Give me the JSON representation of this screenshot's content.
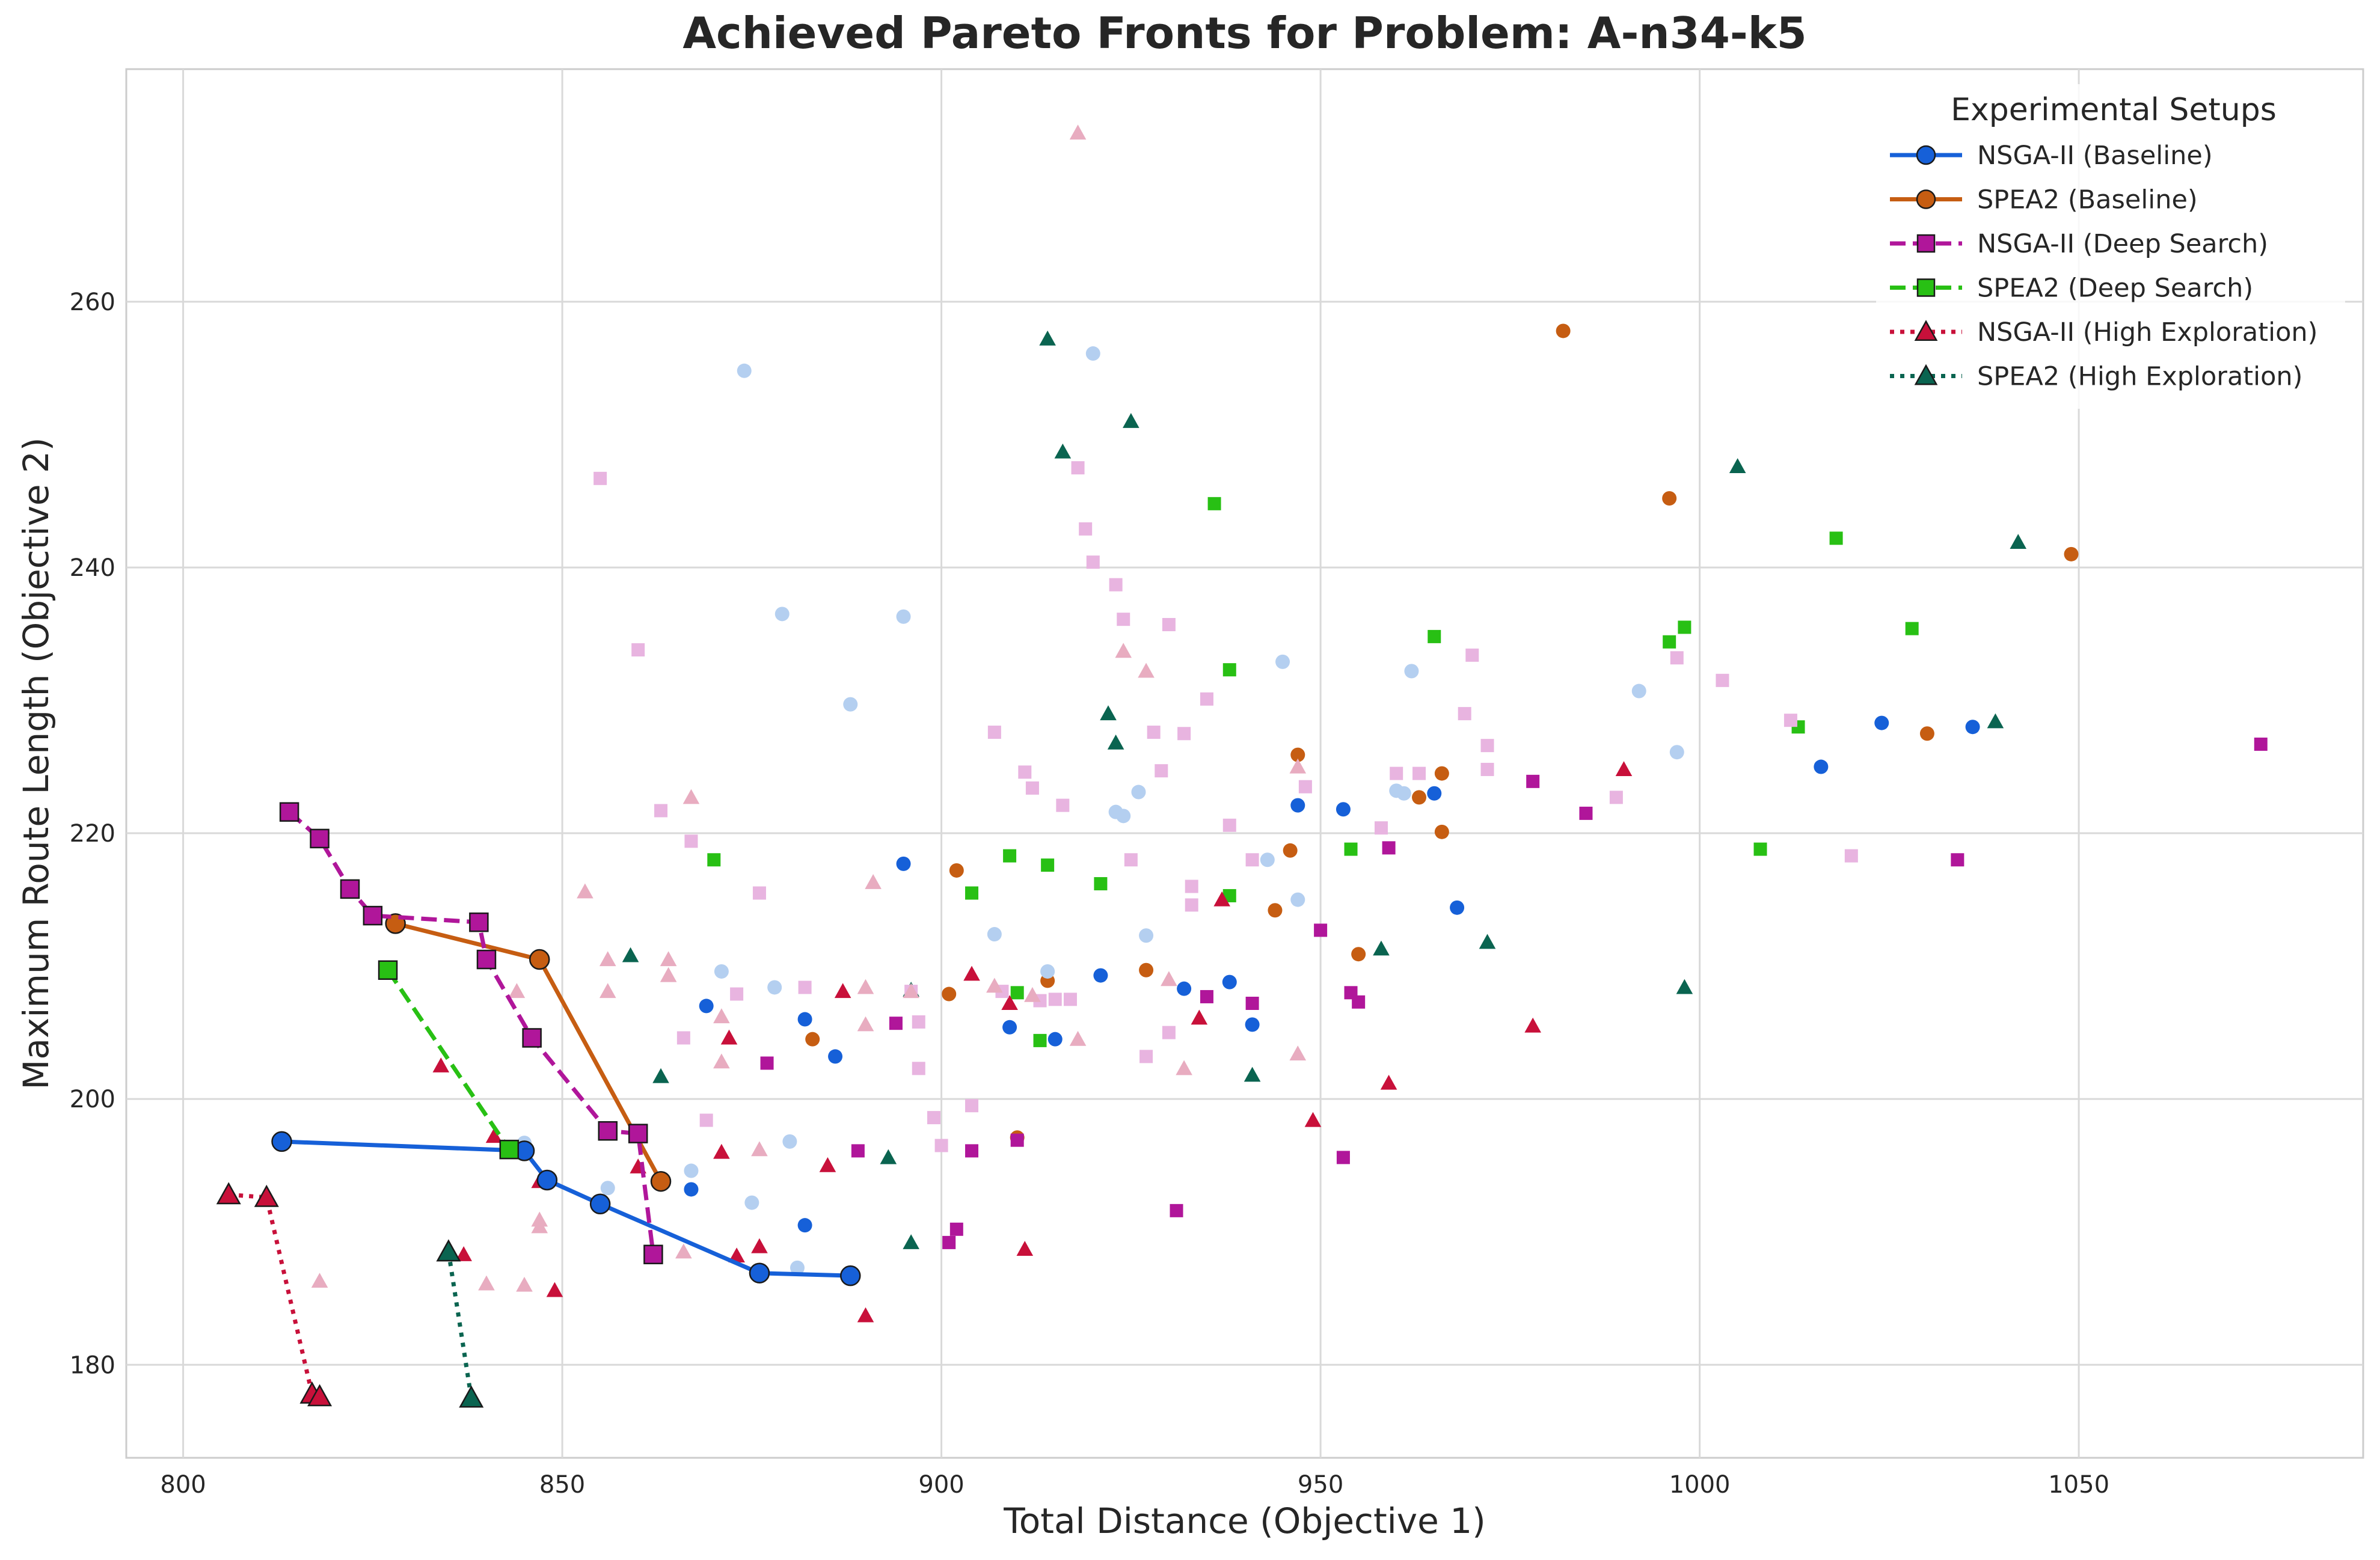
{
  "chart_data": {
    "type": "scatter",
    "title": "Achieved Pareto Fronts for Problem: A-n34-k5",
    "xlabel": "Total Distance (Objective 1)",
    "ylabel": "Maximum Route Length (Objective 2)",
    "xlim": [
      792.5,
      1087.5
    ],
    "ylim": [
      173,
      277.5
    ],
    "xticks": [
      800,
      850,
      900,
      950,
      1000,
      1050
    ],
    "yticks": [
      180,
      200,
      220,
      240,
      260
    ],
    "grid": true,
    "legend": {
      "title": "Experimental Setups",
      "placement": "top-right"
    },
    "series": [
      {
        "name": "NSGA-II (Baseline)",
        "color": "#1660d8",
        "marker": "circle",
        "line": "solid",
        "front": [
          [
            813,
            196.8
          ],
          [
            845,
            196.1
          ],
          [
            848,
            193.9
          ],
          [
            855,
            192.1
          ],
          [
            876,
            186.9
          ],
          [
            888,
            186.7
          ]
        ],
        "points": [
          [
            867,
            193.2
          ],
          [
            869,
            207
          ],
          [
            882,
            206
          ],
          [
            882,
            190.5
          ],
          [
            886,
            203.2
          ],
          [
            895,
            217.7
          ],
          [
            909,
            205.4
          ],
          [
            915,
            204.5
          ],
          [
            921,
            209.3
          ],
          [
            932,
            208.3
          ],
          [
            938,
            208.8
          ],
          [
            941,
            205.6
          ],
          [
            947,
            222.1
          ],
          [
            953,
            221.8
          ],
          [
            965,
            223
          ],
          [
            968,
            214.4
          ],
          [
            1016,
            225
          ],
          [
            1024,
            228.3
          ],
          [
            1036,
            228
          ]
        ]
      },
      {
        "name": "SPEA2 (Baseline)",
        "color": "#c65d12",
        "marker": "circle",
        "line": "solid",
        "front": [
          [
            828,
            213.2
          ],
          [
            847,
            210.5
          ],
          [
            863,
            193.8
          ]
        ],
        "points": [
          [
            883,
            204.5
          ],
          [
            901,
            207.9
          ],
          [
            902,
            217.2
          ],
          [
            910,
            197.1
          ],
          [
            914,
            208.9
          ],
          [
            927,
            209.7
          ],
          [
            944,
            214.2
          ],
          [
            946,
            218.7
          ],
          [
            947,
            225.9
          ],
          [
            955,
            210.9
          ],
          [
            963,
            222.7
          ],
          [
            966,
            224.5
          ],
          [
            966,
            220.1
          ],
          [
            982,
            257.8
          ],
          [
            996,
            245.2
          ],
          [
            1030,
            227.5
          ],
          [
            1049,
            241
          ]
        ]
      },
      {
        "name": "NSGA-II (Deep Search)",
        "color": "#b0169a",
        "marker": "square",
        "line": "dashed",
        "front": [
          [
            814,
            221.6
          ],
          [
            818,
            219.6
          ],
          [
            822,
            215.8
          ],
          [
            825,
            213.8
          ],
          [
            839,
            213.3
          ],
          [
            840,
            210.5
          ],
          [
            846,
            204.6
          ],
          [
            856,
            197.6
          ],
          [
            860,
            197.4
          ],
          [
            862,
            188.3
          ]
        ],
        "points": [
          [
            877,
            202.7
          ],
          [
            889,
            196.1
          ],
          [
            894,
            205.7
          ],
          [
            901,
            189.2
          ],
          [
            902,
            190.2
          ],
          [
            904,
            196.1
          ],
          [
            910,
            196.9
          ],
          [
            931,
            191.6
          ],
          [
            935,
            207.7
          ],
          [
            941,
            207.2
          ],
          [
            950,
            212.7
          ],
          [
            953,
            195.6
          ],
          [
            954,
            208
          ],
          [
            955,
            207.3
          ],
          [
            959,
            218.9
          ],
          [
            978,
            223.9
          ],
          [
            985,
            221.5
          ],
          [
            1034,
            218
          ],
          [
            1074,
            226.7
          ]
        ]
      },
      {
        "name": "SPEA2 (Deep Search)",
        "color": "#28c014",
        "marker": "square",
        "line": "dashed",
        "front": [
          [
            827,
            209.7
          ],
          [
            843,
            196.2
          ]
        ],
        "points": [
          [
            870,
            218
          ],
          [
            904,
            215.5
          ],
          [
            910,
            208
          ],
          [
            909,
            218.3
          ],
          [
            913,
            204.4
          ],
          [
            914,
            217.6
          ],
          [
            921,
            216.2
          ],
          [
            936,
            244.8
          ],
          [
            938,
            232.3
          ],
          [
            938,
            215.3
          ],
          [
            954,
            218.8
          ],
          [
            965,
            234.8
          ],
          [
            996,
            234.4
          ],
          [
            998,
            235.5
          ],
          [
            1008,
            218.8
          ],
          [
            1013,
            228
          ],
          [
            1018,
            242.2
          ],
          [
            1028,
            235.4
          ]
        ]
      },
      {
        "name": "NSGA-II (High Exploration)",
        "color": "#c8103a",
        "marker": "triangle",
        "line": "dotted",
        "front": [
          [
            806,
            192.8
          ],
          [
            811,
            192.6
          ],
          [
            817,
            177.8
          ],
          [
            818,
            177.6
          ]
        ],
        "points": [
          [
            834,
            202.5
          ],
          [
            837,
            188.3
          ],
          [
            841,
            197.2
          ],
          [
            847,
            193.8
          ],
          [
            849,
            185.6
          ],
          [
            860,
            194.9
          ],
          [
            871,
            196
          ],
          [
            872,
            204.6
          ],
          [
            873,
            188.2
          ],
          [
            876,
            188.9
          ],
          [
            885,
            195
          ],
          [
            887,
            208.1
          ],
          [
            890,
            183.7
          ],
          [
            904,
            209.4
          ],
          [
            909,
            207.2
          ],
          [
            911,
            188.7
          ],
          [
            934,
            206.1
          ],
          [
            937,
            215
          ],
          [
            949,
            198.4
          ],
          [
            959,
            201.2
          ],
          [
            978,
            205.5
          ],
          [
            990,
            224.8
          ]
        ]
      },
      {
        "name": "SPEA2 (High Exploration)",
        "color": "#0a6450",
        "marker": "triangle",
        "line": "dotted",
        "front": [
          [
            835,
            188.5
          ],
          [
            838,
            177.5
          ]
        ],
        "points": [
          [
            859,
            210.8
          ],
          [
            863,
            201.7
          ],
          [
            893,
            195.6
          ],
          [
            896,
            189.2
          ],
          [
            896,
            208.2
          ],
          [
            914,
            257.2
          ],
          [
            916,
            248.7
          ],
          [
            922,
            229
          ],
          [
            923,
            226.8
          ],
          [
            925,
            251
          ],
          [
            941,
            201.8
          ],
          [
            958,
            211.3
          ],
          [
            972,
            211.8
          ],
          [
            998,
            208.4
          ],
          [
            1005,
            247.6
          ],
          [
            1039,
            228.4
          ],
          [
            1042,
            241.9
          ]
        ]
      },
      {
        "name": "",
        "color": "#b4cff0",
        "marker": "circle",
        "line": "none",
        "front": [],
        "points": [
          [
            845,
            196.7
          ],
          [
            856,
            193.3
          ],
          [
            867,
            194.6
          ],
          [
            871,
            209.6
          ],
          [
            874,
            254.8
          ],
          [
            875,
            192.2
          ],
          [
            878,
            208.4
          ],
          [
            879,
            236.5
          ],
          [
            880,
            196.8
          ],
          [
            881,
            187.3
          ],
          [
            888,
            229.7
          ],
          [
            895,
            236.3
          ],
          [
            907,
            212.4
          ],
          [
            914,
            209.6
          ],
          [
            920,
            256.1
          ],
          [
            923,
            221.6
          ],
          [
            924,
            221.3
          ],
          [
            926,
            223.1
          ],
          [
            927,
            212.3
          ],
          [
            943,
            218
          ],
          [
            945,
            232.9
          ],
          [
            947,
            215
          ],
          [
            960,
            223.2
          ],
          [
            961,
            223
          ],
          [
            962,
            232.2
          ],
          [
            992,
            230.7
          ],
          [
            997,
            226.1
          ]
        ]
      },
      {
        "name": "",
        "color": "#e8b4e0",
        "marker": "square",
        "line": "none",
        "front": [],
        "points": [
          [
            855,
            246.7
          ],
          [
            860,
            233.8
          ],
          [
            863,
            221.7
          ],
          [
            866,
            204.6
          ],
          [
            867,
            219.4
          ],
          [
            869,
            198.4
          ],
          [
            873,
            207.9
          ],
          [
            876,
            215.5
          ],
          [
            882,
            208.4
          ],
          [
            896,
            208.1
          ],
          [
            897,
            202.3
          ],
          [
            897,
            205.8
          ],
          [
            899,
            198.6
          ],
          [
            900,
            196.5
          ],
          [
            904,
            199.5
          ],
          [
            907,
            227.6
          ],
          [
            908,
            208.1
          ],
          [
            911,
            224.6
          ],
          [
            912,
            223.4
          ],
          [
            913,
            207.4
          ],
          [
            915,
            207.5
          ],
          [
            916,
            222.1
          ],
          [
            917,
            207.5
          ],
          [
            918,
            247.5
          ],
          [
            919,
            242.9
          ],
          [
            920,
            240.4
          ],
          [
            923,
            238.7
          ],
          [
            924,
            236.1
          ],
          [
            925,
            218
          ],
          [
            927,
            203.2
          ],
          [
            928,
            227.6
          ],
          [
            929,
            224.7
          ],
          [
            930,
            235.7
          ],
          [
            930,
            205
          ],
          [
            932,
            227.5
          ],
          [
            933,
            216
          ],
          [
            933,
            214.6
          ],
          [
            935,
            230.1
          ],
          [
            938,
            220.6
          ],
          [
            941,
            218
          ],
          [
            948,
            223.5
          ],
          [
            958,
            220.4
          ],
          [
            960,
            224.5
          ],
          [
            963,
            224.5
          ],
          [
            969,
            229
          ],
          [
            970,
            233.4
          ],
          [
            972,
            226.6
          ],
          [
            972,
            224.8
          ],
          [
            989,
            222.7
          ],
          [
            997,
            233.2
          ],
          [
            1003,
            231.5
          ],
          [
            1012,
            228.5
          ],
          [
            1020,
            218.3
          ]
        ]
      },
      {
        "name": "",
        "color": "#e8acc0",
        "marker": "triangle",
        "line": "none",
        "front": [],
        "points": [
          [
            818,
            186.3
          ],
          [
            840,
            186.1
          ],
          [
            844,
            208.1
          ],
          [
            845,
            186
          ],
          [
            847,
            190.9
          ],
          [
            847,
            190.4
          ],
          [
            853,
            215.6
          ],
          [
            856,
            208.1
          ],
          [
            856,
            210.5
          ],
          [
            864,
            210.5
          ],
          [
            864,
            209.3
          ],
          [
            866,
            188.5
          ],
          [
            867,
            222.7
          ],
          [
            871,
            206.2
          ],
          [
            871,
            202.8
          ],
          [
            876,
            196.2
          ],
          [
            890,
            208.4
          ],
          [
            890,
            205.6
          ],
          [
            891,
            216.3
          ],
          [
            896,
            208.1
          ],
          [
            907,
            208.5
          ],
          [
            912,
            207.8
          ],
          [
            918,
            272.7
          ],
          [
            918,
            204.5
          ],
          [
            924,
            233.7
          ],
          [
            927,
            232.2
          ],
          [
            930,
            209
          ],
          [
            932,
            202.3
          ],
          [
            947,
            225
          ],
          [
            947,
            203.4
          ]
        ]
      }
    ]
  }
}
